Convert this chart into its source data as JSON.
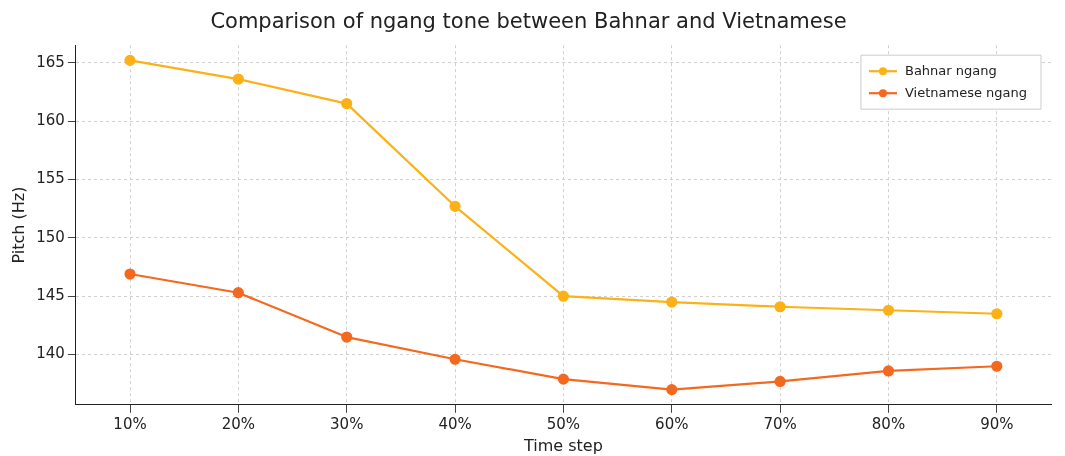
{
  "chart_data": {
    "type": "line",
    "title": "Comparison of ngang tone between Bahnar and Vietnamese",
    "xlabel": "Time step",
    "ylabel": "Pitch (Hz)",
    "categories": [
      "10%",
      "20%",
      "30%",
      "40%",
      "50%",
      "60%",
      "70%",
      "80%",
      "90%"
    ],
    "series": [
      {
        "name": "Bahnar ngang",
        "color": "#fbb117",
        "values": [
          165.2,
          163.6,
          161.5,
          152.7,
          145.0,
          144.5,
          144.1,
          143.8,
          143.5
        ]
      },
      {
        "name": "Vietnamese ngang",
        "color": "#f4691f",
        "values": [
          146.9,
          145.3,
          141.5,
          139.6,
          137.9,
          137.0,
          137.7,
          138.6,
          139.0
        ]
      }
    ],
    "ylim": [
      135.7,
      166.5
    ],
    "yticks": [
      140,
      145,
      150,
      155,
      160,
      165
    ],
    "grid": true,
    "legend": "top right",
    "marker": "circle",
    "line_style": "solid"
  }
}
